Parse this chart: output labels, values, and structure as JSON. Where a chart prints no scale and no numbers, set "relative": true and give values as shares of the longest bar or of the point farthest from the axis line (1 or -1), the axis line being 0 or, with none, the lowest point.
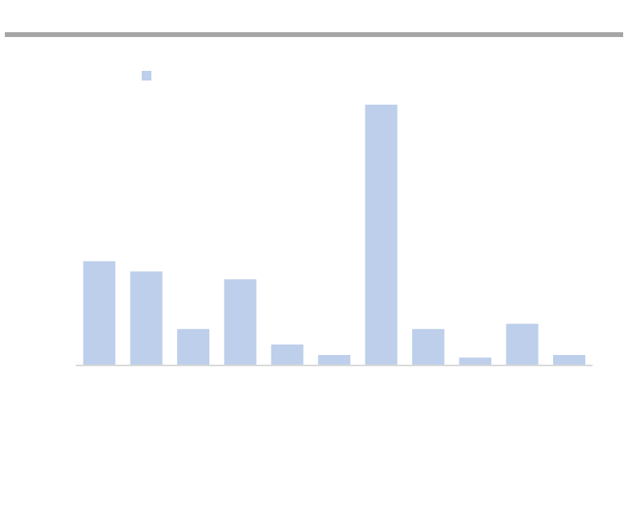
{
  "chart_data": {
    "type": "bar",
    "relative": true,
    "categories": [
      null,
      null,
      null,
      null,
      null,
      null,
      null,
      null,
      null,
      null,
      null
    ],
    "values": [
      0.4,
      0.36,
      0.14,
      0.33,
      0.08,
      0.04,
      1,
      0.14,
      0.03,
      0.16,
      0.04
    ],
    "color": "#bdcfea"
  }
}
